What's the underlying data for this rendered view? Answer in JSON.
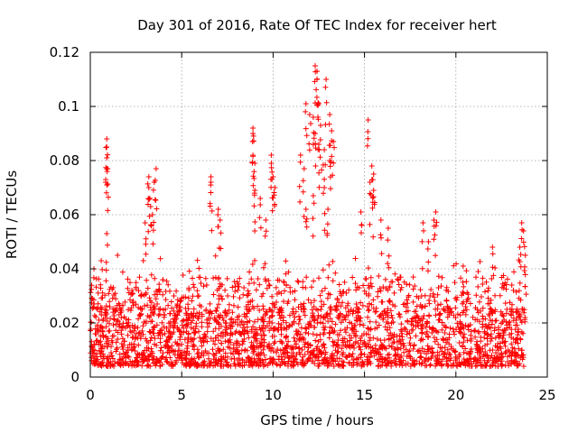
{
  "chart_data": {
    "type": "scatter",
    "title": "Day 301 of 2016, Rate Of TEC Index for receiver hert",
    "xlabel": "GPS time / hours",
    "ylabel": "ROTI / TECUs",
    "xlim": [
      0,
      25
    ],
    "ylim": [
      0,
      0.12
    ],
    "xticks": [
      0,
      5,
      10,
      15,
      20,
      25
    ],
    "yticks": [
      0,
      0.02,
      0.04,
      0.06,
      0.08,
      0.1,
      0.12
    ],
    "xtick_labels": [
      "0",
      "5",
      "10",
      "15",
      "20",
      "25"
    ],
    "ytick_labels": [
      "0",
      "0.02",
      "0.04",
      "0.06",
      "0.08",
      "0.1",
      "0.12"
    ],
    "grid": true,
    "marker": "+",
    "series": [
      {
        "name": "ROTI",
        "color": "#ff0000",
        "x_range": [
          0,
          23.8
        ],
        "baseline_band": [
          0.004,
          0.025
        ],
        "notable_points": [
          {
            "x": 0.9,
            "y": 0.088
          },
          {
            "x": 0.9,
            "y": 0.085
          },
          {
            "x": 0.9,
            "y": 0.081
          },
          {
            "x": 0.95,
            "y": 0.077
          },
          {
            "x": 0.9,
            "y": 0.053
          },
          {
            "x": 0.6,
            "y": 0.043
          },
          {
            "x": 0.2,
            "y": 0.04
          },
          {
            "x": 3.2,
            "y": 0.074
          },
          {
            "x": 3.2,
            "y": 0.07
          },
          {
            "x": 3.6,
            "y": 0.077
          },
          {
            "x": 3.5,
            "y": 0.072
          },
          {
            "x": 3.3,
            "y": 0.063
          },
          {
            "x": 3.4,
            "y": 0.06
          },
          {
            "x": 3.0,
            "y": 0.057
          },
          {
            "x": 6.6,
            "y": 0.074
          },
          {
            "x": 6.6,
            "y": 0.072
          },
          {
            "x": 7.0,
            "y": 0.062
          },
          {
            "x": 7.1,
            "y": 0.058
          },
          {
            "x": 8.9,
            "y": 0.092
          },
          {
            "x": 8.9,
            "y": 0.09
          },
          {
            "x": 8.9,
            "y": 0.082
          },
          {
            "x": 9.0,
            "y": 0.079
          },
          {
            "x": 9.0,
            "y": 0.069
          },
          {
            "x": 9.3,
            "y": 0.066
          },
          {
            "x": 9.6,
            "y": 0.058
          },
          {
            "x": 9.9,
            "y": 0.082
          },
          {
            "x": 9.9,
            "y": 0.079
          },
          {
            "x": 10.0,
            "y": 0.074
          },
          {
            "x": 10.1,
            "y": 0.07
          },
          {
            "x": 11.5,
            "y": 0.082
          },
          {
            "x": 11.7,
            "y": 0.077
          },
          {
            "x": 11.8,
            "y": 0.062
          },
          {
            "x": 11.8,
            "y": 0.101
          },
          {
            "x": 12.0,
            "y": 0.097
          },
          {
            "x": 12.2,
            "y": 0.096
          },
          {
            "x": 12.3,
            "y": 0.09
          },
          {
            "x": 12.3,
            "y": 0.115
          },
          {
            "x": 12.4,
            "y": 0.113
          },
          {
            "x": 12.4,
            "y": 0.11
          },
          {
            "x": 12.5,
            "y": 0.101
          },
          {
            "x": 12.6,
            "y": 0.093
          },
          {
            "x": 12.5,
            "y": 0.086
          },
          {
            "x": 12.9,
            "y": 0.11
          },
          {
            "x": 12.8,
            "y": 0.084
          },
          {
            "x": 13.1,
            "y": 0.097
          },
          {
            "x": 13.2,
            "y": 0.091
          },
          {
            "x": 13.3,
            "y": 0.087
          },
          {
            "x": 13.1,
            "y": 0.08
          },
          {
            "x": 12.8,
            "y": 0.07
          },
          {
            "x": 12.2,
            "y": 0.067
          },
          {
            "x": 13.0,
            "y": 0.062
          },
          {
            "x": 15.2,
            "y": 0.095
          },
          {
            "x": 15.4,
            "y": 0.078
          },
          {
            "x": 15.5,
            "y": 0.075
          },
          {
            "x": 15.3,
            "y": 0.072
          },
          {
            "x": 15.5,
            "y": 0.069
          },
          {
            "x": 14.8,
            "y": 0.061
          },
          {
            "x": 15.9,
            "y": 0.058
          },
          {
            "x": 16.3,
            "y": 0.055
          },
          {
            "x": 18.9,
            "y": 0.061
          },
          {
            "x": 18.8,
            "y": 0.058
          },
          {
            "x": 18.2,
            "y": 0.057
          },
          {
            "x": 18.5,
            "y": 0.05
          },
          {
            "x": 20.4,
            "y": 0.041
          },
          {
            "x": 22.0,
            "y": 0.048
          },
          {
            "x": 23.6,
            "y": 0.057
          },
          {
            "x": 23.7,
            "y": 0.054
          },
          {
            "x": 23.5,
            "y": 0.048
          },
          {
            "x": 23.8,
            "y": 0.045
          }
        ]
      }
    ]
  }
}
